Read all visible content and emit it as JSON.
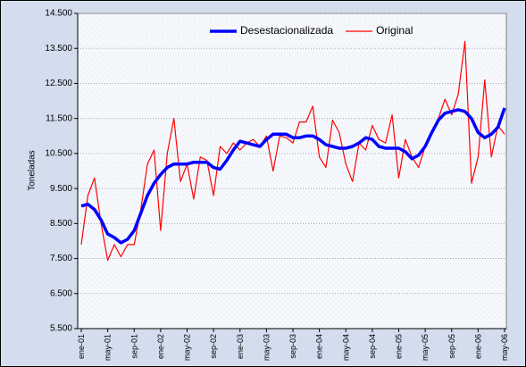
{
  "chart_data": {
    "type": "line",
    "y_label": "Toneladas",
    "categories": [
      "ene-01",
      null,
      null,
      null,
      "may-01",
      null,
      null,
      null,
      "sep-01",
      null,
      null,
      null,
      "ene-02",
      null,
      null,
      null,
      "may-02",
      null,
      null,
      null,
      "sep-02",
      null,
      null,
      null,
      "ene-03",
      null,
      null,
      null,
      "may-03",
      null,
      null,
      null,
      "sep-03",
      null,
      null,
      null,
      "ene-04",
      null,
      null,
      null,
      "may-04",
      null,
      null,
      null,
      "sep-04",
      null,
      null,
      null,
      "ene-05",
      null,
      null,
      null,
      "may-05",
      null,
      null,
      null,
      "sep-05",
      null,
      null,
      null,
      "ene-06",
      null,
      null,
      null,
      "may-06"
    ],
    "series": [
      {
        "name": "Desestacionalizada",
        "color": "#0000ff",
        "values": [
          9000,
          9050,
          8900,
          8600,
          8200,
          8100,
          7950,
          8050,
          8300,
          8800,
          9300,
          9650,
          9900,
          10100,
          10200,
          10200,
          10200,
          10250,
          10250,
          10250,
          10100,
          10050,
          10300,
          10600,
          10850,
          10800,
          10750,
          10700,
          10900,
          11050,
          11050,
          11050,
          10950,
          10950,
          11000,
          11000,
          10900,
          10750,
          10700,
          10650,
          10650,
          10700,
          10800,
          10950,
          10900,
          10700,
          10650,
          10650,
          10650,
          10550,
          10350,
          10450,
          10700,
          11100,
          11450,
          11650,
          11700,
          11750,
          11700,
          11500,
          11100,
          10950,
          11050,
          11250,
          11800
        ]
      },
      {
        "name": "Original",
        "color": "#ff0000",
        "values": [
          7900,
          9300,
          9800,
          8500,
          7450,
          7900,
          7550,
          7900,
          7900,
          8900,
          10200,
          10600,
          8300,
          10500,
          11500,
          9700,
          10200,
          9200,
          10400,
          10300,
          9300,
          10700,
          10500,
          10800,
          10600,
          10800,
          10900,
          10700,
          11000,
          10000,
          11000,
          10950,
          10800,
          11400,
          11400,
          11850,
          10400,
          10100,
          11450,
          11100,
          10200,
          9700,
          10800,
          10600,
          11300,
          10900,
          10800,
          11600,
          9800,
          10900,
          10400,
          10100,
          10700,
          11100,
          11500,
          12050,
          11600,
          12200,
          13700,
          9650,
          10400,
          12600,
          10400,
          11300,
          11050
        ]
      }
    ],
    "ylim": [
      5500,
      14500
    ],
    "yticks": [
      {
        "value": 5500,
        "label": "5.500"
      },
      {
        "value": 6500,
        "label": "6.500"
      },
      {
        "value": 7500,
        "label": "7.500"
      },
      {
        "value": 8500,
        "label": "8.500"
      },
      {
        "value": 9500,
        "label": "9.500"
      },
      {
        "value": 10500,
        "label": "10.500"
      },
      {
        "value": 11500,
        "label": "11.500"
      },
      {
        "value": 12500,
        "label": "12.500"
      },
      {
        "value": 13500,
        "label": "13.500"
      },
      {
        "value": 14500,
        "label": "14.500"
      }
    ],
    "grid": true,
    "legend": "top"
  }
}
